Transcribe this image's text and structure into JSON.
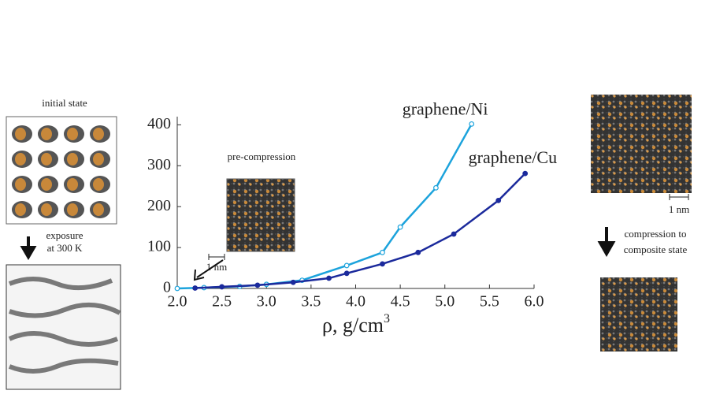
{
  "chart_data": {
    "type": "line",
    "xlabel": "ρ, g/cm",
    "xlabel_superscript": "3",
    "xlim": [
      2.0,
      6.0
    ],
    "xticks": [
      {
        "value": 2,
        "label": "2.0"
      },
      {
        "value": 2.5,
        "label": "2.5"
      },
      {
        "value": 3,
        "label": "3.0"
      },
      {
        "value": 3.5,
        "label": "3.5"
      },
      {
        "value": 4,
        "label": "4.0"
      },
      {
        "value": 4.5,
        "label": "4.5"
      },
      {
        "value": 5,
        "label": "5.0"
      },
      {
        "value": 5.5,
        "label": "5.5"
      },
      {
        "value": 6,
        "label": "6.0"
      }
    ],
    "ylim": [
      0,
      420
    ],
    "yticks": [
      0,
      100,
      200,
      300,
      400
    ],
    "series": [
      {
        "name": "graphene/Ni",
        "color": "#1ca3dc",
        "x": [
          2.0,
          2.3,
          2.7,
          3.0,
          3.4,
          3.9,
          4.3,
          4.5,
          4.9,
          5.3
        ],
        "values": [
          0,
          2,
          5,
          10,
          20,
          56,
          88,
          150,
          246,
          402
        ]
      },
      {
        "name": "graphene/Cu",
        "color": "#1b2a9c",
        "x": [
          2.2,
          2.5,
          2.9,
          3.3,
          3.7,
          3.9,
          4.3,
          4.7,
          5.1,
          5.6,
          5.9
        ],
        "values": [
          1,
          4,
          8,
          15,
          25,
          37,
          60,
          88,
          133,
          215,
          281
        ]
      }
    ]
  },
  "annotations": {
    "initial_state": "initial state",
    "exposure": "exposure",
    "temperature": "at 300 K",
    "pre_compression": "pre-compression",
    "scale_1": "1 nm",
    "scale_2": "1 nm",
    "compression": "compression to",
    "composite": "composite state"
  }
}
